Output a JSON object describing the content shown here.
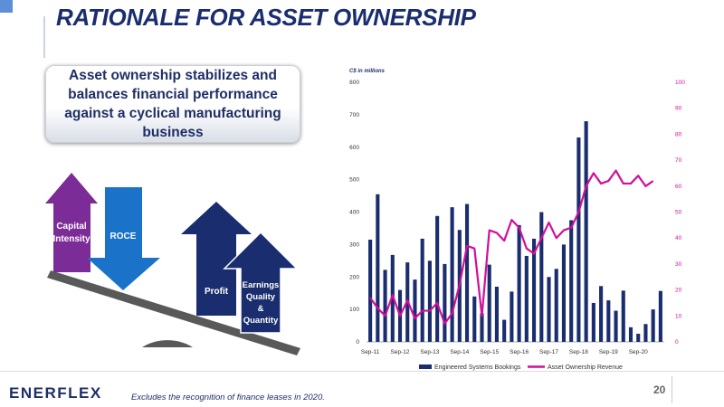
{
  "slide": {
    "title": "RATIONALE FOR ASSET OWNERSHIP",
    "callout": "Asset ownership stabilizes and balances financial performance against a cyclical manufacturing business",
    "page_number": "20",
    "footnote": "Excludes the recognition of finance leases in 2020.",
    "logo_text": "ENERFLEX",
    "colors": {
      "navy": "#1a2d6e",
      "magenta": "#d10f9b",
      "purple": "#7b2c96",
      "blue": "#1a73c8",
      "grey": "#595959"
    }
  },
  "diagram": {
    "arrows": [
      {
        "label": "Capital Intensity",
        "line1": "Capital",
        "line2": "Intensity",
        "direction": "up",
        "color": "#7b2c96"
      },
      {
        "label": "ROCE",
        "direction": "down",
        "color": "#1a73c8"
      },
      {
        "label": "Profit",
        "direction": "up",
        "color": "#1a2d6e"
      },
      {
        "label": "Earnings Quality & Quantity",
        "line1": "Earnings",
        "line2": "Quality",
        "line3": "&",
        "line4": "Quantity",
        "direction": "up",
        "color": "#1a2d6e"
      }
    ]
  },
  "chart_data": {
    "type": "bar+line",
    "unit_label": "C$ in millions",
    "y_left": {
      "min": 0,
      "max": 800,
      "ticks": [
        0,
        100,
        200,
        300,
        400,
        500,
        600,
        700,
        800
      ]
    },
    "y_right": {
      "min": 0,
      "max": 100,
      "ticks": [
        0,
        10,
        20,
        30,
        40,
        50,
        60,
        70,
        80,
        90,
        100
      ]
    },
    "x_tick_labels": [
      "Sep-11",
      "Sep-12",
      "Sep-13",
      "Sep-14",
      "Sep-15",
      "Sep-16",
      "Sep-17",
      "Sep-18",
      "Sep-19",
      "Sep-20"
    ],
    "series": [
      {
        "name": "Engineered Systems Bookings",
        "type": "bar",
        "axis": "left",
        "color": "#1a2d6e",
        "values": [
          315,
          455,
          222,
          268,
          160,
          245,
          192,
          318,
          250,
          388,
          240,
          415,
          345,
          425,
          140,
          88,
          238,
          170,
          68,
          155,
          360,
          265,
          318,
          400,
          200,
          225,
          300,
          375,
          630,
          680,
          120,
          172,
          128,
          96,
          158,
          45,
          25,
          55,
          100,
          157
        ]
      },
      {
        "name": "Asset Ownership Revenue",
        "type": "line",
        "axis": "right",
        "color": "#d10f9b",
        "values": [
          17,
          13,
          10,
          18,
          10,
          16,
          9,
          12,
          12,
          15,
          7,
          11,
          22,
          37,
          36,
          10,
          43,
          42,
          39,
          47,
          44,
          36,
          34,
          40,
          46,
          40,
          43,
          44,
          50,
          60,
          65,
          61,
          62,
          66,
          61,
          61,
          64,
          60,
          62
        ]
      }
    ],
    "legend": [
      "Engineered Systems Bookings",
      "Asset Ownership Revenue"
    ],
    "legend_position": "bottom"
  }
}
